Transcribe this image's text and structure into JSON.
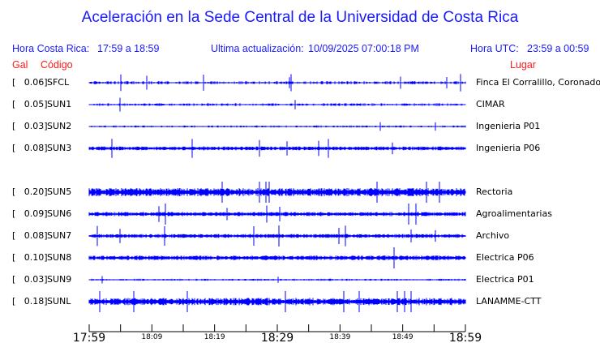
{
  "chart_data": {
    "type": "line",
    "title": "Aceleración en la Sede Central de la Universidad de Costa Rica",
    "header": {
      "local_label": "Hora Costa Rica:",
      "local_range": "17:59 a 18:59",
      "update_label": "Ultima actualización:",
      "update_value": "10/09/2025 07:00:18 PM",
      "utc_label": "Hora UTC:",
      "utc_range": "23:59 a 00:59"
    },
    "col_gal": "Gal",
    "col_code": "Código",
    "col_place": "Lugar",
    "x_ticks": [
      "17:59",
      "18:09",
      "18:19",
      "18:29",
      "18:39",
      "18:49",
      "18:59"
    ],
    "x_range": [
      "17:59",
      "18:59"
    ],
    "trace_color": "#0000ff",
    "series": [
      {
        "gal": "[   0.06]",
        "code": "SFCL",
        "place": "Finca El Corralillo, Coronado",
        "peak": 0.06
      },
      {
        "gal": "[   0.05]",
        "code": "SUN1",
        "place": "CIMAR",
        "peak": 0.05
      },
      {
        "gal": "[   0.03]",
        "code": "SUN2",
        "place": "Ingenieria P01",
        "peak": 0.03
      },
      {
        "gal": "[   0.08]",
        "code": "SUN3",
        "place": "Ingenieria P06",
        "peak": 0.08
      },
      {
        "gal": "[   0.20]",
        "code": "SUN5",
        "place": "Rectoria",
        "peak": 0.2
      },
      {
        "gal": "[   0.09]",
        "code": "SUN6",
        "place": "Agroalimentarias",
        "peak": 0.09
      },
      {
        "gal": "[   0.08]",
        "code": "SUN7",
        "place": "Archivo",
        "peak": 0.08
      },
      {
        "gal": "[   0.10]",
        "code": "SUN8",
        "place": "Electrica P06",
        "peak": 0.1
      },
      {
        "gal": "[   0.03]",
        "code": "SUN9",
        "place": "Electrica P01",
        "peak": 0.03
      },
      {
        "gal": "[   0.18]",
        "code": "SUNL",
        "place": "LANAMME-CTT",
        "peak": 0.18
      }
    ]
  }
}
